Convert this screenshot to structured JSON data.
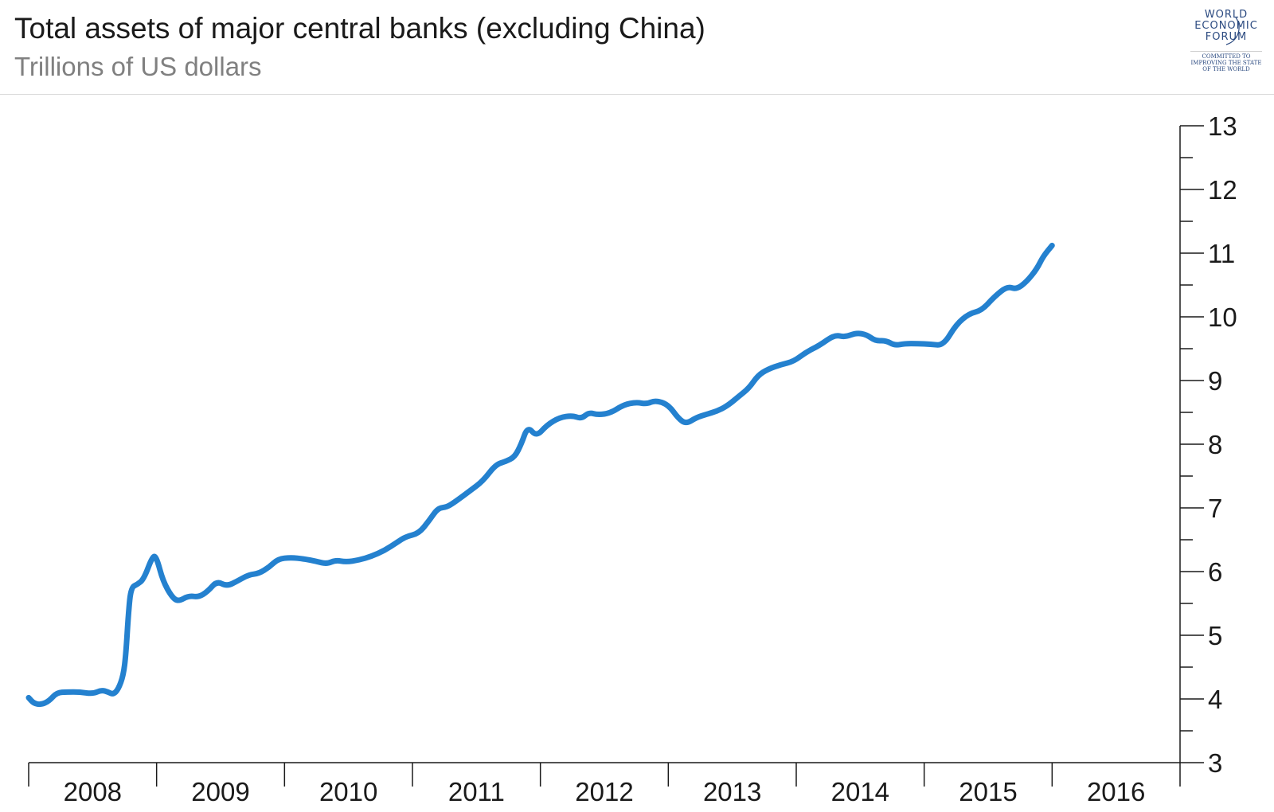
{
  "header": {
    "title": "Total assets of major central banks (excluding China)",
    "subtitle": "Trillions of US dollars"
  },
  "logo": {
    "line1": "WORLD",
    "line2": "ECONOMIC",
    "line3": "FORUM",
    "tagline1": "COMMITTED TO",
    "tagline2": "IMPROVING THE STATE",
    "tagline3": "OF THE WORLD",
    "color": "#2b4a80"
  },
  "chart_data": {
    "type": "line",
    "title": "Total assets of major central banks (excluding China)",
    "subtitle": "Trillions of US dollars",
    "xlabel": "",
    "ylabel": "",
    "xlim": [
      2008.0,
      2017.0
    ],
    "ylim": [
      3,
      13
    ],
    "grid": false,
    "y_axis_side": "right",
    "line_color": "#2481cf",
    "x_ticks": [
      "2008",
      "2009",
      "2010",
      "2011",
      "2012",
      "2013",
      "2014",
      "2015",
      "2016"
    ],
    "y_ticks": [
      "3",
      "4",
      "5",
      "6",
      "7",
      "8",
      "9",
      "10",
      "11",
      "12",
      "13"
    ],
    "series": [
      {
        "values": [
          [
            2008.0,
            4.02
          ],
          [
            2008.04,
            3.93
          ],
          [
            2008.1,
            3.91
          ],
          [
            2008.16,
            3.97
          ],
          [
            2008.22,
            4.1
          ],
          [
            2008.3,
            4.11
          ],
          [
            2008.4,
            4.11
          ],
          [
            2008.5,
            4.08
          ],
          [
            2008.57,
            4.14
          ],
          [
            2008.62,
            4.11
          ],
          [
            2008.66,
            4.07
          ],
          [
            2008.7,
            4.15
          ],
          [
            2008.74,
            4.37
          ],
          [
            2008.76,
            4.7
          ],
          [
            2008.78,
            5.35
          ],
          [
            2008.8,
            5.75
          ],
          [
            2008.85,
            5.8
          ],
          [
            2008.9,
            5.88
          ],
          [
            2008.97,
            6.25
          ],
          [
            2009.0,
            6.22
          ],
          [
            2009.05,
            5.85
          ],
          [
            2009.12,
            5.6
          ],
          [
            2009.17,
            5.53
          ],
          [
            2009.25,
            5.62
          ],
          [
            2009.33,
            5.6
          ],
          [
            2009.4,
            5.69
          ],
          [
            2009.47,
            5.85
          ],
          [
            2009.55,
            5.77
          ],
          [
            2009.63,
            5.85
          ],
          [
            2009.72,
            5.95
          ],
          [
            2009.8,
            5.97
          ],
          [
            2009.88,
            6.07
          ],
          [
            2009.95,
            6.2
          ],
          [
            2010.05,
            6.22
          ],
          [
            2010.15,
            6.2
          ],
          [
            2010.25,
            6.16
          ],
          [
            2010.33,
            6.12
          ],
          [
            2010.4,
            6.18
          ],
          [
            2010.48,
            6.15
          ],
          [
            2010.58,
            6.18
          ],
          [
            2010.68,
            6.24
          ],
          [
            2010.78,
            6.33
          ],
          [
            2010.88,
            6.46
          ],
          [
            2010.95,
            6.55
          ],
          [
            2011.05,
            6.6
          ],
          [
            2011.13,
            6.8
          ],
          [
            2011.2,
            7.0
          ],
          [
            2011.27,
            7.01
          ],
          [
            2011.35,
            7.12
          ],
          [
            2011.45,
            7.27
          ],
          [
            2011.55,
            7.42
          ],
          [
            2011.65,
            7.68
          ],
          [
            2011.73,
            7.73
          ],
          [
            2011.8,
            7.8
          ],
          [
            2011.85,
            8.0
          ],
          [
            2011.9,
            8.28
          ],
          [
            2011.97,
            8.12
          ],
          [
            2012.05,
            8.3
          ],
          [
            2012.15,
            8.42
          ],
          [
            2012.25,
            8.45
          ],
          [
            2012.32,
            8.4
          ],
          [
            2012.38,
            8.5
          ],
          [
            2012.45,
            8.46
          ],
          [
            2012.55,
            8.49
          ],
          [
            2012.65,
            8.62
          ],
          [
            2012.75,
            8.66
          ],
          [
            2012.83,
            8.63
          ],
          [
            2012.9,
            8.69
          ],
          [
            2013.0,
            8.62
          ],
          [
            2013.08,
            8.4
          ],
          [
            2013.14,
            8.32
          ],
          [
            2013.22,
            8.42
          ],
          [
            2013.3,
            8.47
          ],
          [
            2013.38,
            8.52
          ],
          [
            2013.46,
            8.6
          ],
          [
            2013.55,
            8.75
          ],
          [
            2013.63,
            8.88
          ],
          [
            2013.7,
            9.08
          ],
          [
            2013.78,
            9.18
          ],
          [
            2013.88,
            9.25
          ],
          [
            2013.98,
            9.3
          ],
          [
            2014.08,
            9.45
          ],
          [
            2014.18,
            9.55
          ],
          [
            2014.3,
            9.72
          ],
          [
            2014.38,
            9.68
          ],
          [
            2014.47,
            9.75
          ],
          [
            2014.55,
            9.72
          ],
          [
            2014.62,
            9.62
          ],
          [
            2014.7,
            9.63
          ],
          [
            2014.77,
            9.55
          ],
          [
            2014.85,
            9.58
          ],
          [
            2014.95,
            9.58
          ],
          [
            2015.05,
            9.57
          ],
          [
            2015.15,
            9.55
          ],
          [
            2015.25,
            9.88
          ],
          [
            2015.35,
            10.05
          ],
          [
            2015.45,
            10.1
          ],
          [
            2015.55,
            10.32
          ],
          [
            2015.65,
            10.48
          ],
          [
            2015.72,
            10.43
          ],
          [
            2015.8,
            10.55
          ],
          [
            2015.88,
            10.75
          ],
          [
            2015.93,
            10.95
          ],
          [
            2016.0,
            11.12
          ]
        ]
      }
    ]
  }
}
